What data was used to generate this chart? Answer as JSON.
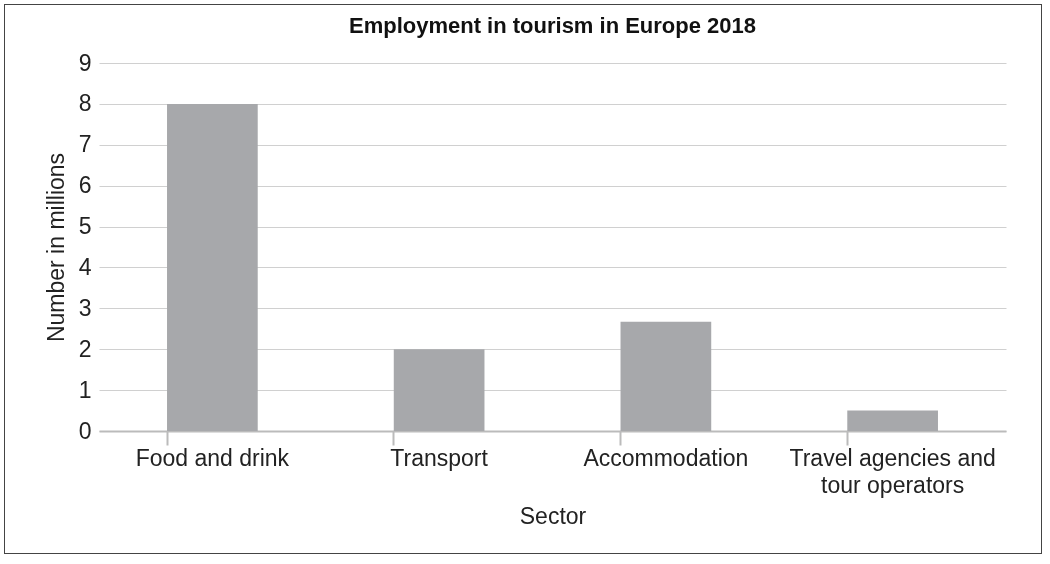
{
  "chart_data": {
    "type": "bar",
    "title": "Employment in tourism in Europe 2018",
    "xlabel": "Sector",
    "ylabel": "Number in millions",
    "categories": [
      "Food and drink",
      "Transport",
      "Accommodation",
      "Travel agencies and tour operators"
    ],
    "values": [
      8,
      2,
      2.67,
      0.5
    ],
    "color": "#a7a8ab",
    "ylim": [
      0,
      9
    ],
    "yticks": [
      0,
      1,
      2,
      3,
      4,
      5,
      6,
      7,
      8,
      9
    ],
    "grid": "y"
  }
}
